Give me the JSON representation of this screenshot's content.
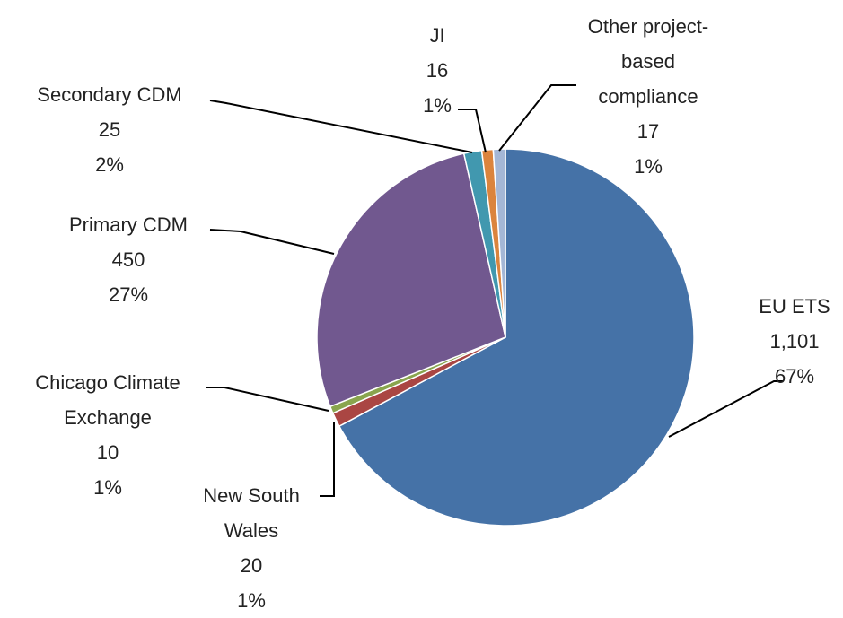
{
  "chart_data": {
    "type": "pie",
    "categories": [
      "EU ETS",
      "New South Wales",
      "Chicago Climate Exchange",
      "Primary CDM",
      "Secondary CDM",
      "JI",
      "Other project-based compliance"
    ],
    "values": [
      1101,
      20,
      10,
      450,
      25,
      16,
      17
    ],
    "value_labels": [
      "1,101",
      "20",
      "10",
      "450",
      "25",
      "16",
      "17"
    ],
    "percent_labels": [
      "67%",
      "1%",
      "1%",
      "27%",
      "2%",
      "1%",
      "1%"
    ],
    "colors": [
      "#4572a7",
      "#aa4643",
      "#89a54e",
      "#71588f",
      "#4198af",
      "#db843d",
      "#a4b7d6"
    ]
  }
}
